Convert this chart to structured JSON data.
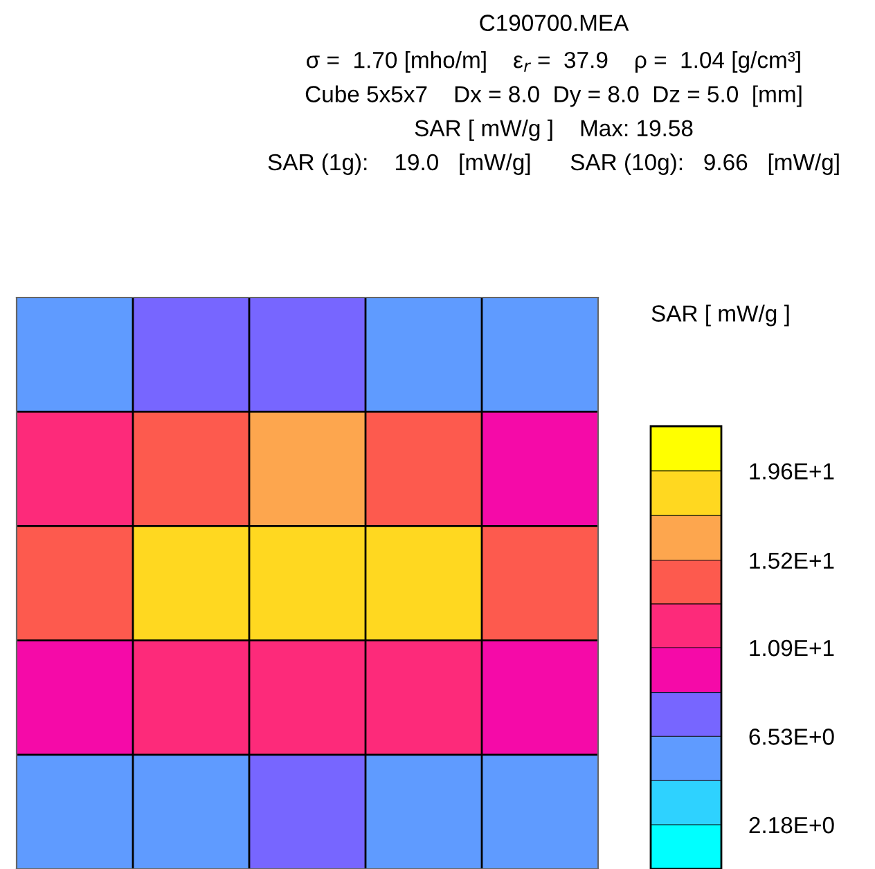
{
  "chart_data": {
    "type": "heatmap",
    "title": "C190700.MEA",
    "subtitle": "σ =  1.70 [mho/m]    ε$_{r}$ =  37.9    ρ =  1.04 [g/cm³]\nCube 5x5x7    Dx = 8.0  Dy = 8.0  Dz = 5.0  [mm]\nSAR [ mW/g ]    Max: 19.58\nSAR (1g):    19.0   [mW/g]      SAR (10g):   9.66   [mW/g]",
    "clabel": "SAR [ mW/g ]",
    "categories": [
      null,
      null,
      null,
      null,
      null
    ],
    "y_categories": [
      null,
      null,
      null,
      null,
      null
    ],
    "cells": [
      [
        5.2,
        6.6,
        7.0,
        6.0,
        4.6
      ],
      [
        11.2,
        14.4,
        15.4,
        13.6,
        10.0
      ],
      [
        13.4,
        17.8,
        19.58,
        17.4,
        13.4
      ],
      [
        9.0,
        12.0,
        12.9,
        12.0,
        9.2
      ],
      [
        4.4,
        6.3,
        6.7,
        5.7,
        4.4
      ]
    ],
    "colors": [
      "#00ffff",
      "#2ed2ff",
      "#5f9bff",
      "#7766ff",
      "#f50aa8",
      "#fd2a7a",
      "#fd5a4e",
      "#fda64e",
      "#ffd820",
      "#ffff00"
    ],
    "clim": [
      0,
      21.8
    ],
    "cticks": [
      {
        "value": 2.18,
        "label": "2.18E+0"
      },
      {
        "value": 4.35,
        "label": null
      },
      {
        "value": 6.53,
        "label": "6.53E+0"
      },
      {
        "value": 8.7,
        "label": null
      },
      {
        "value": 10.9,
        "label": "1.09E+1"
      },
      {
        "value": 13.05,
        "label": null
      },
      {
        "value": 15.2,
        "label": "1.52E+1"
      },
      {
        "value": 17.4,
        "label": null
      },
      {
        "value": 19.6,
        "label": "1.96E+1"
      }
    ],
    "grid": true
  }
}
